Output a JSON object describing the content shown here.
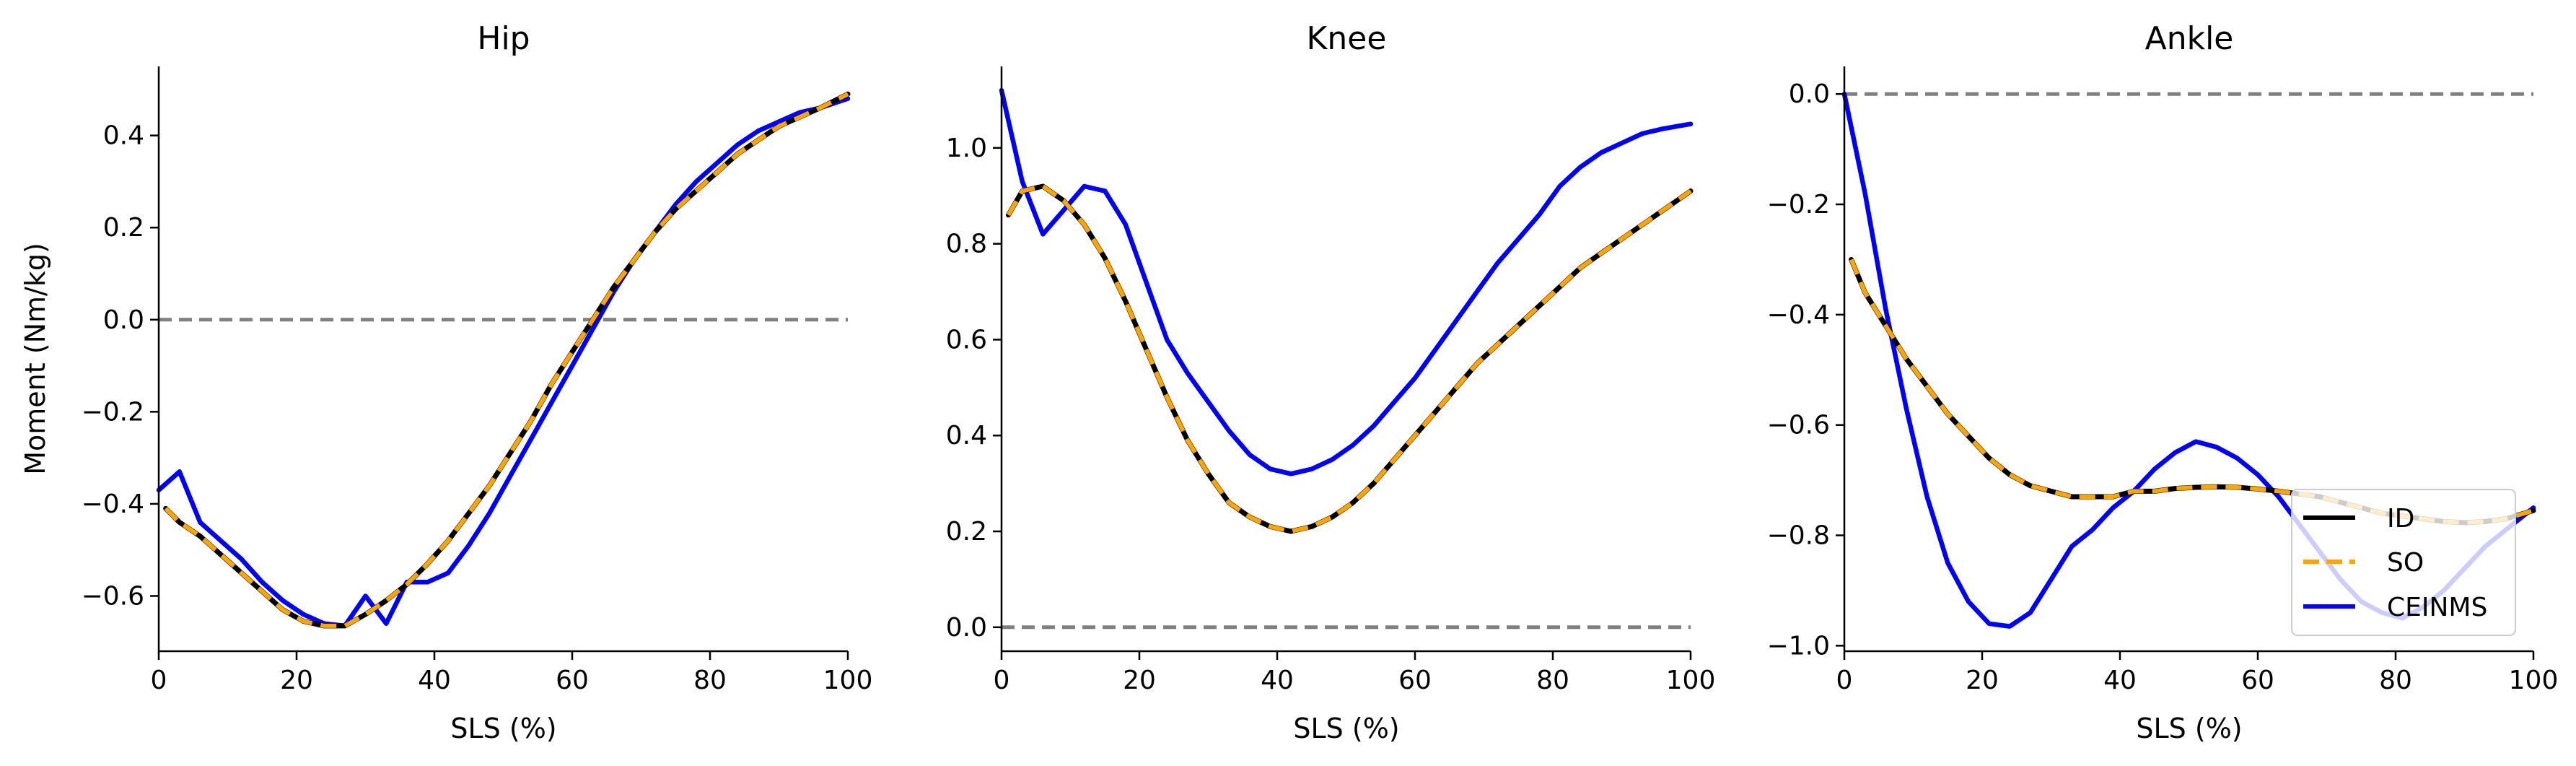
{
  "colors": {
    "id": "#000000",
    "so": "#FFA500",
    "ceinms": "#0000FF",
    "zero_line": "#808080",
    "axis": "#000000"
  },
  "legend": {
    "location": "lower-right of Ankle panel",
    "entries": [
      {
        "label": "ID",
        "color": "#000000",
        "style": "solid"
      },
      {
        "label": "SO",
        "color": "#FFA500",
        "style": "dashed"
      },
      {
        "label": "CEINMS",
        "color": "#0000FF",
        "style": "solid"
      }
    ]
  },
  "chart_data": [
    {
      "type": "line",
      "title": "Hip",
      "xlabel": "SLS (%)",
      "ylabel": "Moment (Nm/kg)",
      "xlim": [
        0,
        100
      ],
      "ylim": [
        -0.72,
        0.55
      ],
      "xticks": [
        0,
        20,
        40,
        60,
        80,
        100
      ],
      "yticks": [
        -0.6,
        -0.4,
        -0.2,
        0.0,
        0.2,
        0.4
      ],
      "ytick_labels": [
        "−0.6",
        "−0.4",
        "−0.2",
        "0.0",
        "0.2",
        "0.4"
      ],
      "zero_line": true,
      "x": [
        0,
        3,
        6,
        9,
        12,
        15,
        18,
        21,
        24,
        27,
        30,
        33,
        36,
        39,
        42,
        45,
        48,
        51,
        54,
        57,
        60,
        63,
        66,
        69,
        72,
        75,
        78,
        81,
        84,
        87,
        90,
        93,
        96,
        100
      ],
      "series": [
        {
          "name": "ID",
          "start_x": 1,
          "values": [
            -0.41,
            -0.44,
            -0.47,
            -0.51,
            -0.55,
            -0.59,
            -0.63,
            -0.655,
            -0.665,
            -0.665,
            -0.64,
            -0.61,
            -0.575,
            -0.53,
            -0.48,
            -0.42,
            -0.36,
            -0.29,
            -0.22,
            -0.14,
            -0.07,
            0.0,
            0.07,
            0.13,
            0.19,
            0.24,
            0.28,
            0.32,
            0.36,
            0.39,
            0.42,
            0.44,
            0.46,
            0.49
          ]
        },
        {
          "name": "SO",
          "start_x": 1,
          "values": [
            -0.41,
            -0.44,
            -0.47,
            -0.51,
            -0.55,
            -0.59,
            -0.63,
            -0.655,
            -0.665,
            -0.665,
            -0.64,
            -0.61,
            -0.575,
            -0.53,
            -0.48,
            -0.42,
            -0.36,
            -0.29,
            -0.22,
            -0.14,
            -0.07,
            0.0,
            0.07,
            0.13,
            0.19,
            0.24,
            0.28,
            0.32,
            0.36,
            0.39,
            0.42,
            0.44,
            0.46,
            0.49
          ]
        },
        {
          "name": "CEINMS",
          "start_x": 0,
          "values": [
            -0.37,
            -0.33,
            -0.44,
            -0.48,
            -0.52,
            -0.57,
            -0.61,
            -0.64,
            -0.66,
            -0.665,
            -0.6,
            -0.66,
            -0.57,
            -0.57,
            -0.55,
            -0.49,
            -0.42,
            -0.34,
            -0.26,
            -0.18,
            -0.1,
            -0.02,
            0.06,
            0.13,
            0.19,
            0.25,
            0.3,
            0.34,
            0.38,
            0.41,
            0.43,
            0.45,
            0.46,
            0.48
          ]
        }
      ]
    },
    {
      "type": "line",
      "title": "Knee",
      "xlabel": "SLS (%)",
      "ylabel": "",
      "xlim": [
        0,
        100
      ],
      "ylim": [
        -0.05,
        1.17
      ],
      "xticks": [
        0,
        20,
        40,
        60,
        80,
        100
      ],
      "yticks": [
        0.0,
        0.2,
        0.4,
        0.6,
        0.8,
        1.0
      ],
      "ytick_labels": [
        "0.0",
        "0.2",
        "0.4",
        "0.6",
        "0.8",
        "1.0"
      ],
      "zero_line": true,
      "x": [
        0,
        3,
        6,
        9,
        12,
        15,
        18,
        21,
        24,
        27,
        30,
        33,
        36,
        39,
        42,
        45,
        48,
        51,
        54,
        57,
        60,
        63,
        66,
        69,
        72,
        75,
        78,
        81,
        84,
        87,
        90,
        93,
        96,
        100
      ],
      "series": [
        {
          "name": "ID",
          "start_x": 1,
          "values": [
            0.86,
            0.91,
            0.92,
            0.89,
            0.84,
            0.77,
            0.68,
            0.58,
            0.48,
            0.39,
            0.32,
            0.26,
            0.23,
            0.21,
            0.2,
            0.21,
            0.23,
            0.26,
            0.3,
            0.35,
            0.4,
            0.45,
            0.5,
            0.55,
            0.59,
            0.63,
            0.67,
            0.71,
            0.75,
            0.78,
            0.81,
            0.84,
            0.87,
            0.91
          ]
        },
        {
          "name": "SO",
          "start_x": 1,
          "values": [
            0.86,
            0.91,
            0.92,
            0.89,
            0.84,
            0.77,
            0.68,
            0.58,
            0.48,
            0.39,
            0.32,
            0.26,
            0.23,
            0.21,
            0.2,
            0.21,
            0.23,
            0.26,
            0.3,
            0.35,
            0.4,
            0.45,
            0.5,
            0.55,
            0.59,
            0.63,
            0.67,
            0.71,
            0.75,
            0.78,
            0.81,
            0.84,
            0.87,
            0.91
          ]
        },
        {
          "name": "CEINMS",
          "start_x": 0,
          "values": [
            1.12,
            0.93,
            0.82,
            0.87,
            0.92,
            0.91,
            0.84,
            0.72,
            0.6,
            0.53,
            0.47,
            0.41,
            0.36,
            0.33,
            0.32,
            0.33,
            0.35,
            0.38,
            0.42,
            0.47,
            0.52,
            0.58,
            0.64,
            0.7,
            0.76,
            0.81,
            0.86,
            0.92,
            0.96,
            0.99,
            1.01,
            1.03,
            1.04,
            1.05
          ]
        }
      ]
    },
    {
      "type": "line",
      "title": "Ankle",
      "xlabel": "SLS (%)",
      "ylabel": "",
      "xlim": [
        0,
        100
      ],
      "ylim": [
        -1.01,
        0.05
      ],
      "xticks": [
        0,
        20,
        40,
        60,
        80,
        100
      ],
      "yticks": [
        -1.0,
        -0.8,
        -0.6,
        -0.4,
        -0.2,
        0.0
      ],
      "ytick_labels": [
        "−1.0",
        "−0.8",
        "−0.6",
        "−0.4",
        "−0.2",
        "0.0"
      ],
      "zero_line": true,
      "x": [
        0,
        3,
        6,
        9,
        12,
        15,
        18,
        21,
        24,
        27,
        30,
        33,
        36,
        39,
        42,
        45,
        48,
        51,
        54,
        57,
        60,
        63,
        66,
        69,
        72,
        75,
        78,
        81,
        84,
        87,
        90,
        93,
        96,
        100
      ],
      "series": [
        {
          "name": "ID",
          "start_x": 1,
          "values": [
            -0.3,
            -0.36,
            -0.42,
            -0.48,
            -0.53,
            -0.58,
            -0.62,
            -0.66,
            -0.69,
            -0.71,
            -0.72,
            -0.73,
            -0.73,
            -0.73,
            -0.72,
            -0.72,
            -0.715,
            -0.713,
            -0.712,
            -0.713,
            -0.716,
            -0.72,
            -0.725,
            -0.73,
            -0.74,
            -0.75,
            -0.76,
            -0.765,
            -0.77,
            -0.775,
            -0.777,
            -0.775,
            -0.77,
            -0.755
          ]
        },
        {
          "name": "SO",
          "start_x": 1,
          "values": [
            -0.3,
            -0.36,
            -0.42,
            -0.48,
            -0.53,
            -0.58,
            -0.62,
            -0.66,
            -0.69,
            -0.71,
            -0.72,
            -0.73,
            -0.73,
            -0.73,
            -0.72,
            -0.72,
            -0.715,
            -0.713,
            -0.712,
            -0.713,
            -0.716,
            -0.72,
            -0.725,
            -0.73,
            -0.74,
            -0.75,
            -0.76,
            -0.765,
            -0.77,
            -0.775,
            -0.777,
            -0.775,
            -0.77,
            -0.755
          ]
        },
        {
          "name": "CEINMS",
          "start_x": 0,
          "values": [
            0.0,
            -0.18,
            -0.39,
            -0.57,
            -0.73,
            -0.85,
            -0.92,
            -0.96,
            -0.965,
            -0.94,
            -0.88,
            -0.82,
            -0.79,
            -0.75,
            -0.72,
            -0.68,
            -0.65,
            -0.63,
            -0.64,
            -0.66,
            -0.69,
            -0.73,
            -0.78,
            -0.83,
            -0.88,
            -0.92,
            -0.94,
            -0.95,
            -0.93,
            -0.9,
            -0.86,
            -0.82,
            -0.79,
            -0.75
          ]
        }
      ]
    }
  ]
}
